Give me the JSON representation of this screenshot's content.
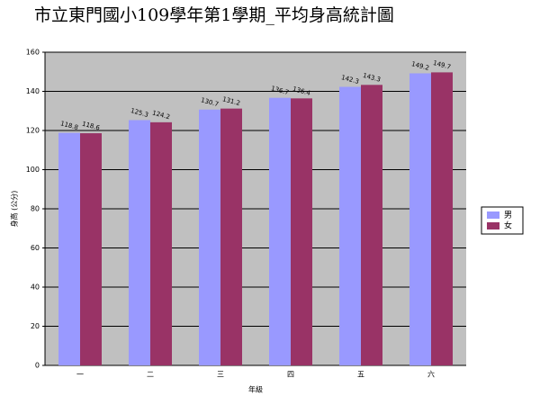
{
  "chart_data": {
    "type": "bar",
    "title": "市立東門國小109學年第1學期_平均身高統計圖",
    "x_label": "年級",
    "y_label": "身高 (公分)",
    "categories": [
      "一",
      "二",
      "三",
      "四",
      "五",
      "六"
    ],
    "series": [
      {
        "name": "男",
        "color": "#9999ff",
        "values": [
          118.8,
          125.3,
          130.7,
          136.7,
          142.3,
          149.2
        ]
      },
      {
        "name": "女",
        "color": "#993366",
        "values": [
          118.6,
          124.2,
          131.2,
          136.4,
          143.3,
          149.7
        ]
      }
    ],
    "ylim": [
      0,
      160
    ],
    "yticks": [
      0,
      20,
      40,
      60,
      80,
      100,
      120,
      140,
      160
    ],
    "grid": true,
    "legend": "right"
  }
}
